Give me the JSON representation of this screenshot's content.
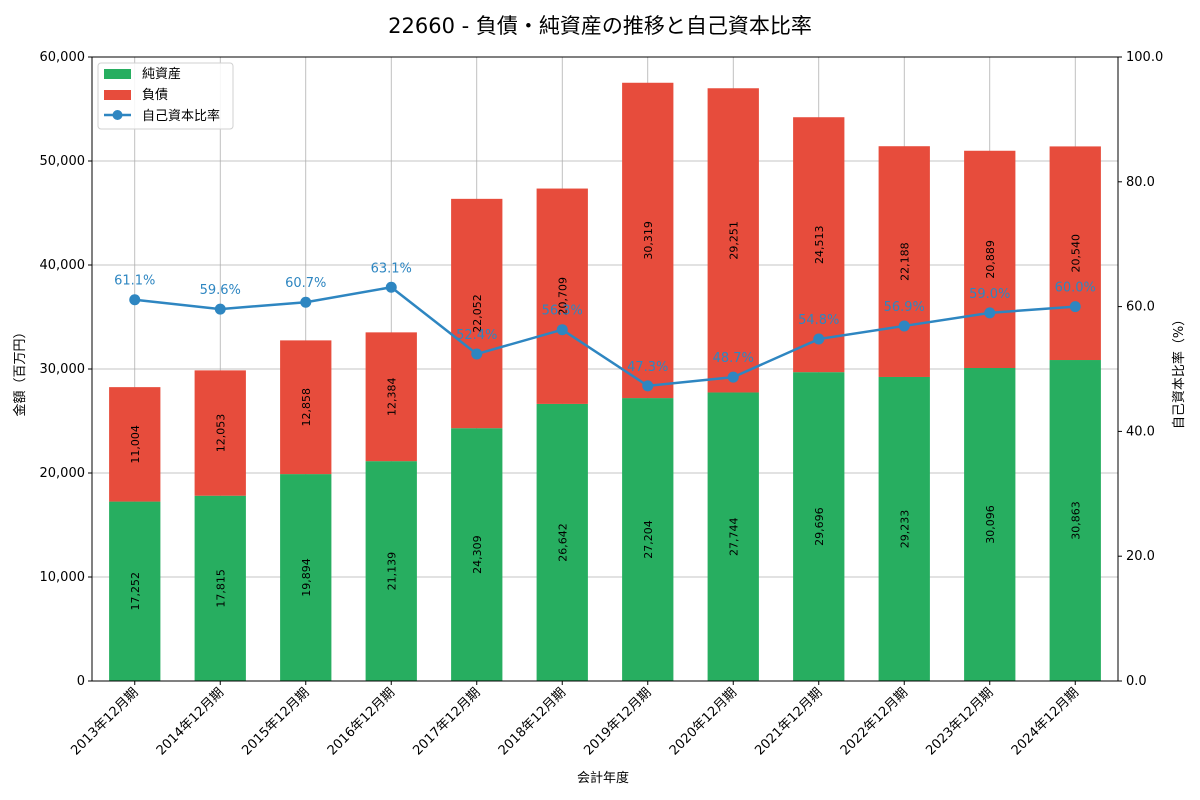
{
  "chart_data": {
    "type": "bar",
    "title": "22660 - 負債・純資産の推移と自己資本比率",
    "xlabel": "会計年度",
    "ylabel": "金額（百万円）",
    "y2label": "自己資本比率（%）",
    "ylim": [
      0,
      60000
    ],
    "y2lim": [
      0,
      100
    ],
    "yticks": [
      "0",
      "10,000",
      "20,000",
      "30,000",
      "40,000",
      "50,000",
      "60,000"
    ],
    "y2ticks": [
      "0.0",
      "20.0",
      "40.0",
      "60.0",
      "80.0",
      "100.0"
    ],
    "grid": true,
    "legend_position": "top-left",
    "categories": [
      "2013年12月期",
      "2014年12月期",
      "2015年12月期",
      "2016年12月期",
      "2017年12月期",
      "2018年12月期",
      "2019年12月期",
      "2020年12月期",
      "2021年12月期",
      "2022年12月期",
      "2023年12月期",
      "2024年12月期"
    ],
    "series": [
      {
        "name": "純資産",
        "kind": "stacked-bar",
        "color": "#27ae60",
        "values": [
          17252,
          17815,
          19894,
          21139,
          24309,
          26642,
          27204,
          27744,
          29696,
          29233,
          30096,
          30863
        ],
        "labels": [
          "17,252",
          "17,815",
          "19,894",
          "21,139",
          "24,309",
          "26,642",
          "27,204",
          "27,744",
          "29,696",
          "29,233",
          "30,096",
          "30,863"
        ]
      },
      {
        "name": "負債",
        "kind": "stacked-bar",
        "color": "#e74c3c",
        "values": [
          11004,
          12053,
          12858,
          12384,
          22052,
          20709,
          30319,
          29251,
          24513,
          22188,
          20889,
          20540
        ],
        "labels": [
          "11,004",
          "12,053",
          "12,858",
          "12,384",
          "22,052",
          "20,709",
          "30,319",
          "29,251",
          "24,513",
          "22,188",
          "20,889",
          "20,540"
        ]
      },
      {
        "name": "自己資本比率",
        "kind": "line",
        "axis": "right",
        "color": "#2e86c1",
        "values": [
          61.1,
          59.6,
          60.7,
          63.1,
          52.4,
          56.3,
          47.3,
          48.7,
          54.8,
          56.9,
          59.0,
          60.0
        ],
        "labels": [
          "61.1%",
          "59.6%",
          "60.7%",
          "63.1%",
          "52.4%",
          "56.3%",
          "47.3%",
          "48.7%",
          "54.8%",
          "56.9%",
          "59.0%",
          "60.0%"
        ]
      }
    ]
  }
}
